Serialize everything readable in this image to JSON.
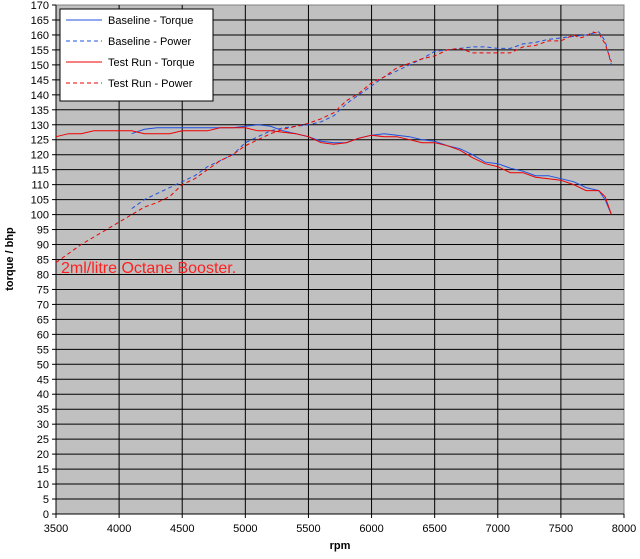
{
  "chart_data": {
    "type": "line",
    "title": "",
    "xlabel": "rpm",
    "ylabel": "torque / bhp",
    "xlim": [
      3500,
      8000
    ],
    "ylim": [
      0,
      170
    ],
    "x_ticks": [
      3500,
      4000,
      4500,
      5000,
      5500,
      6000,
      6500,
      7000,
      7500,
      8000
    ],
    "y_ticks": [
      0,
      5,
      10,
      15,
      20,
      25,
      30,
      35,
      40,
      45,
      50,
      55,
      60,
      65,
      70,
      75,
      80,
      85,
      90,
      95,
      100,
      105,
      110,
      115,
      120,
      125,
      130,
      135,
      140,
      145,
      150,
      155,
      160,
      165,
      170
    ],
    "grid": true,
    "legend_position": "top-left",
    "background": "#c0c0c0",
    "annotation": {
      "text": "2ml/litre Octane Booster.",
      "color": "#ff2020"
    },
    "series": [
      {
        "name": "Baseline - Torque",
        "color": "#2050e0",
        "dash": "solid",
        "points": [
          [
            4100,
            127
          ],
          [
            4200,
            128.5
          ],
          [
            4300,
            129
          ],
          [
            4500,
            129
          ],
          [
            4700,
            129
          ],
          [
            4800,
            129
          ],
          [
            4900,
            129
          ],
          [
            5000,
            129.5
          ],
          [
            5100,
            130
          ],
          [
            5200,
            129.5
          ],
          [
            5300,
            128
          ],
          [
            5400,
            127
          ],
          [
            5500,
            126
          ],
          [
            5600,
            124.5
          ],
          [
            5700,
            124
          ],
          [
            5800,
            124
          ],
          [
            5900,
            125.5
          ],
          [
            6000,
            126.5
          ],
          [
            6100,
            127
          ],
          [
            6200,
            126.5
          ],
          [
            6300,
            126
          ],
          [
            6400,
            125
          ],
          [
            6500,
            124.5
          ],
          [
            6600,
            123
          ],
          [
            6700,
            122
          ],
          [
            6800,
            120
          ],
          [
            6900,
            117.5
          ],
          [
            7000,
            117
          ],
          [
            7100,
            115.5
          ],
          [
            7200,
            114.5
          ],
          [
            7300,
            113
          ],
          [
            7400,
            113
          ],
          [
            7500,
            112
          ],
          [
            7600,
            111
          ],
          [
            7700,
            109
          ],
          [
            7750,
            108.5
          ],
          [
            7800,
            108
          ],
          [
            7850,
            105
          ],
          [
            7900,
            100
          ]
        ]
      },
      {
        "name": "Baseline - Power",
        "color": "#2050e0",
        "dash": "dashed",
        "points": [
          [
            4100,
            102
          ],
          [
            4200,
            105
          ],
          [
            4300,
            107
          ],
          [
            4400,
            109
          ],
          [
            4500,
            111
          ],
          [
            4600,
            113
          ],
          [
            4700,
            116
          ],
          [
            4800,
            118
          ],
          [
            4900,
            120
          ],
          [
            5000,
            124
          ],
          [
            5100,
            126
          ],
          [
            5200,
            128
          ],
          [
            5300,
            129
          ],
          [
            5400,
            129.5
          ],
          [
            5500,
            130
          ],
          [
            5600,
            131
          ],
          [
            5700,
            133
          ],
          [
            5800,
            137
          ],
          [
            5900,
            140
          ],
          [
            6000,
            143
          ],
          [
            6100,
            146
          ],
          [
            6200,
            148
          ],
          [
            6300,
            150
          ],
          [
            6400,
            152
          ],
          [
            6500,
            154.5
          ],
          [
            6600,
            155
          ],
          [
            6700,
            155.5
          ],
          [
            6800,
            156
          ],
          [
            6900,
            156
          ],
          [
            7000,
            155.5
          ],
          [
            7100,
            155.5
          ],
          [
            7200,
            157
          ],
          [
            7300,
            157.5
          ],
          [
            7400,
            158.5
          ],
          [
            7500,
            159
          ],
          [
            7600,
            159.5
          ],
          [
            7700,
            160
          ],
          [
            7750,
            160.5
          ],
          [
            7800,
            161
          ],
          [
            7850,
            158
          ],
          [
            7900,
            150
          ]
        ]
      },
      {
        "name": "Test Run - Torque",
        "color": "#ee0000",
        "dash": "solid",
        "points": [
          [
            3500,
            126
          ],
          [
            3600,
            127
          ],
          [
            3700,
            127
          ],
          [
            3800,
            128
          ],
          [
            3900,
            128
          ],
          [
            4000,
            128
          ],
          [
            4100,
            128
          ],
          [
            4200,
            127
          ],
          [
            4300,
            127
          ],
          [
            4400,
            127
          ],
          [
            4500,
            128
          ],
          [
            4600,
            128
          ],
          [
            4700,
            128
          ],
          [
            4800,
            129
          ],
          [
            4900,
            129
          ],
          [
            5000,
            129
          ],
          [
            5100,
            128
          ],
          [
            5200,
            128
          ],
          [
            5300,
            127.5
          ],
          [
            5400,
            127
          ],
          [
            5500,
            126
          ],
          [
            5600,
            124
          ],
          [
            5700,
            123.5
          ],
          [
            5800,
            124
          ],
          [
            5900,
            125.5
          ],
          [
            6000,
            126.5
          ],
          [
            6100,
            126
          ],
          [
            6200,
            126
          ],
          [
            6300,
            125
          ],
          [
            6400,
            124
          ],
          [
            6500,
            124
          ],
          [
            6600,
            123
          ],
          [
            6700,
            121.5
          ],
          [
            6800,
            119
          ],
          [
            6900,
            117
          ],
          [
            7000,
            116
          ],
          [
            7100,
            114
          ],
          [
            7200,
            114
          ],
          [
            7300,
            112.5
          ],
          [
            7400,
            112
          ],
          [
            7500,
            111.5
          ],
          [
            7600,
            110
          ],
          [
            7700,
            108
          ],
          [
            7750,
            108
          ],
          [
            7800,
            108
          ],
          [
            7850,
            106
          ],
          [
            7900,
            100
          ]
        ]
      },
      {
        "name": "Test Run - Power",
        "color": "#ee0000",
        "dash": "dashed",
        "points": [
          [
            3500,
            84
          ],
          [
            3600,
            87
          ],
          [
            3700,
            90
          ],
          [
            3800,
            92.5
          ],
          [
            3900,
            95
          ],
          [
            4000,
            97.5
          ],
          [
            4100,
            100
          ],
          [
            4200,
            102.5
          ],
          [
            4300,
            104
          ],
          [
            4400,
            106
          ],
          [
            4500,
            110
          ],
          [
            4600,
            112
          ],
          [
            4700,
            115
          ],
          [
            4800,
            118
          ],
          [
            4900,
            120
          ],
          [
            5000,
            123
          ],
          [
            5100,
            125
          ],
          [
            5200,
            127
          ],
          [
            5300,
            128.5
          ],
          [
            5400,
            129.5
          ],
          [
            5500,
            130.5
          ],
          [
            5600,
            132
          ],
          [
            5700,
            134
          ],
          [
            5800,
            138
          ],
          [
            5900,
            140.5
          ],
          [
            6000,
            144
          ],
          [
            6100,
            146
          ],
          [
            6200,
            149
          ],
          [
            6300,
            150.5
          ],
          [
            6400,
            152
          ],
          [
            6500,
            153
          ],
          [
            6600,
            155
          ],
          [
            6700,
            155.5
          ],
          [
            6800,
            154
          ],
          [
            6900,
            154
          ],
          [
            7000,
            154
          ],
          [
            7100,
            154
          ],
          [
            7200,
            156
          ],
          [
            7300,
            156.5
          ],
          [
            7400,
            158
          ],
          [
            7500,
            158
          ],
          [
            7600,
            160
          ],
          [
            7650,
            159
          ],
          [
            7700,
            159.5
          ],
          [
            7750,
            161
          ],
          [
            7800,
            160.5
          ],
          [
            7850,
            157
          ],
          [
            7900,
            151
          ]
        ]
      }
    ]
  }
}
